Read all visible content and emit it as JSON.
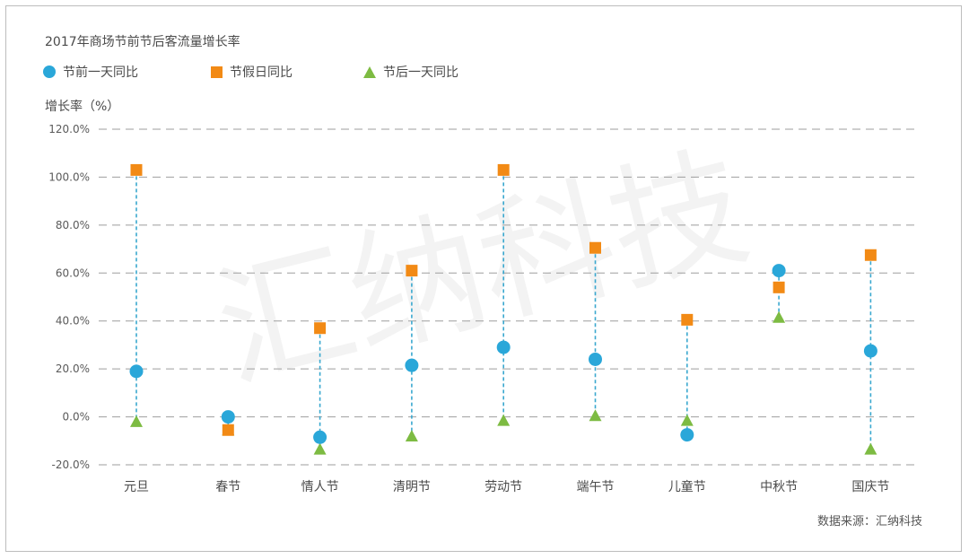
{
  "header": {
    "title": "2017年商场节前节后客流量增长率"
  },
  "legend": [
    {
      "label": "节前一天同比",
      "icon": "circle-icon"
    },
    {
      "label": "节假日同比",
      "icon": "square-icon"
    },
    {
      "label": "节后一天同比",
      "icon": "triangle-icon"
    }
  ],
  "watermark": {
    "text": "汇纳科技"
  },
  "source": "数据来源：汇纳科技",
  "colors": {
    "before": "#2aa7d9",
    "holiday": "#f28a15",
    "after": "#7dbb42",
    "stem": "#3aa8cf",
    "grid": "#9e9e9e"
  },
  "chart_data": {
    "type": "scatter",
    "title": "2017年商场节前节后客流量增长率",
    "ylabel": "增长率（%）",
    "ylim": [
      -20,
      120
    ],
    "yticks": [
      -20,
      0,
      20,
      40,
      60,
      80,
      100,
      120
    ],
    "ytick_labels": [
      "-20.0%",
      "0.0%",
      "20.0%",
      "40.0%",
      "60.0%",
      "80.0%",
      "100.0%",
      "120.0%"
    ],
    "grid": "horizontal-dashed",
    "legend_position": "top-left",
    "categories": [
      "元旦",
      "春节",
      "情人节",
      "清明节",
      "劳动节",
      "端午节",
      "儿童节",
      "中秋节",
      "国庆节"
    ],
    "series": [
      {
        "name": "节前一天同比",
        "marker": "circle",
        "values": [
          19,
          0,
          -8.5,
          21.5,
          29,
          24,
          -7.5,
          61,
          27.5
        ]
      },
      {
        "name": "节假日同比",
        "marker": "square",
        "values": [
          103,
          -5.5,
          37,
          61,
          103,
          70.5,
          40.5,
          54,
          67.5
        ]
      },
      {
        "name": "节后一天同比",
        "marker": "triangle",
        "values": [
          -2,
          -5.5,
          -13.5,
          -8,
          -1.5,
          0.5,
          -1.5,
          41.5,
          -13.5
        ]
      }
    ]
  }
}
